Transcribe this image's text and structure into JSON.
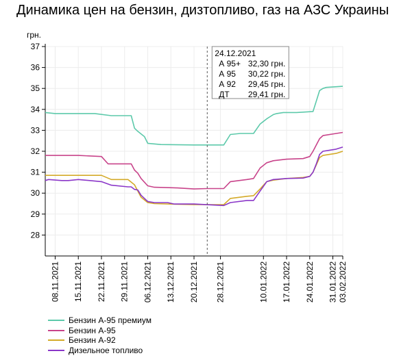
{
  "header": {
    "title": "Динамика цен на бензин, дизтопливо, газ на АЗС Украины"
  },
  "chart_data": {
    "type": "line",
    "ylabel": "грн.",
    "ylim": [
      27,
      37
    ],
    "yticks": [
      28,
      29,
      30,
      31,
      32,
      33,
      34,
      35,
      36,
      37
    ],
    "xlim": [
      "2021-11-05",
      "2022-02-03"
    ],
    "xticks": [
      "08.11.2021",
      "15.11.2021",
      "22.11.2021",
      "29.11.2021",
      "06.12.2021",
      "13.12.2021",
      "20.12.2021",
      "28.12.2021",
      "10.01.2022",
      "17.01.2022",
      "24.01.2022",
      "31.01.2022",
      "03.02.2022"
    ],
    "grid": true,
    "legend_position": "bottom",
    "series": [
      {
        "name": "Бензин А-95 премиум",
        "color": "#5cc9aa",
        "x": [
          "2021-11-05",
          "2021-11-08",
          "2021-11-20",
          "2021-11-25",
          "2021-12-01",
          "2021-12-02",
          "2021-12-03",
          "2021-12-05",
          "2021-12-06",
          "2021-12-10",
          "2021-12-20",
          "2021-12-29",
          "2021-12-31",
          "2022-01-03",
          "2022-01-07",
          "2022-01-09",
          "2022-01-11",
          "2022-01-12",
          "2022-01-13",
          "2022-01-14",
          "2022-01-16",
          "2022-01-20",
          "2022-01-25",
          "2022-01-26",
          "2022-01-27",
          "2022-01-28",
          "2022-01-29",
          "2022-02-03"
        ],
        "values": [
          33.85,
          33.8,
          33.8,
          33.7,
          33.7,
          33.1,
          32.95,
          32.7,
          32.38,
          32.32,
          32.3,
          32.3,
          32.8,
          32.85,
          32.85,
          33.3,
          33.55,
          33.65,
          33.75,
          33.8,
          33.85,
          33.85,
          33.9,
          34.4,
          34.9,
          35.0,
          35.05,
          35.1
        ]
      },
      {
        "name": "Бензин А-95",
        "color": "#c8438a",
        "x": [
          "2021-11-05",
          "2021-11-15",
          "2021-11-22",
          "2021-11-24",
          "2021-12-01",
          "2021-12-02",
          "2021-12-03",
          "2021-12-04",
          "2021-12-06",
          "2021-12-08",
          "2021-12-15",
          "2021-12-20",
          "2021-12-24",
          "2021-12-29",
          "2021-12-31",
          "2022-01-05",
          "2022-01-07",
          "2022-01-09",
          "2022-01-11",
          "2022-01-13",
          "2022-01-17",
          "2022-01-22",
          "2022-01-24",
          "2022-01-25",
          "2022-01-26",
          "2022-01-27",
          "2022-01-28",
          "2022-02-01",
          "2022-02-03"
        ],
        "values": [
          31.8,
          31.8,
          31.75,
          31.4,
          31.4,
          31.1,
          30.95,
          30.7,
          30.35,
          30.28,
          30.25,
          30.2,
          30.22,
          30.22,
          30.55,
          30.65,
          30.7,
          31.2,
          31.45,
          31.55,
          31.62,
          31.65,
          31.75,
          32.0,
          32.3,
          32.6,
          32.75,
          32.85,
          32.9
        ]
      },
      {
        "name": "Бензин А-92",
        "color": "#d4aa28",
        "x": [
          "2021-11-05",
          "2021-11-22",
          "2021-11-25",
          "2021-11-30",
          "2021-12-02",
          "2021-12-03",
          "2021-12-04",
          "2021-12-06",
          "2021-12-08",
          "2021-12-15",
          "2021-12-20",
          "2021-12-29",
          "2021-12-31",
          "2022-01-05",
          "2022-01-07",
          "2022-01-09",
          "2022-01-11",
          "2022-01-13",
          "2022-01-17",
          "2022-01-22",
          "2022-01-24",
          "2022-01-25",
          "2022-01-26",
          "2022-01-27",
          "2022-01-28",
          "2022-02-01",
          "2022-02-03"
        ],
        "values": [
          30.85,
          30.85,
          30.65,
          30.65,
          30.4,
          30.1,
          29.8,
          29.55,
          29.5,
          29.47,
          29.45,
          29.45,
          29.75,
          29.85,
          29.88,
          30.2,
          30.55,
          30.62,
          30.7,
          30.75,
          30.8,
          31.0,
          31.35,
          31.7,
          31.8,
          31.9,
          32.0
        ]
      },
      {
        "name": "Дизельное топливо",
        "color": "#8a36c8",
        "x": [
          "2021-11-05",
          "2021-11-06",
          "2021-11-10",
          "2021-11-12",
          "2021-11-15",
          "2021-11-22",
          "2021-11-25",
          "2021-11-30",
          "2021-12-01",
          "2021-12-02",
          "2021-12-03",
          "2021-12-04",
          "2021-12-06",
          "2021-12-08",
          "2021-12-12",
          "2021-12-14",
          "2021-12-20",
          "2021-12-29",
          "2021-12-31",
          "2022-01-05",
          "2022-01-07",
          "2022-01-09",
          "2022-01-11",
          "2022-01-13",
          "2022-01-17",
          "2022-01-22",
          "2022-01-24",
          "2022-01-25",
          "2022-01-26",
          "2022-01-27",
          "2022-01-28",
          "2022-02-01",
          "2022-02-03"
        ],
        "values": [
          30.6,
          30.65,
          30.6,
          30.6,
          30.65,
          30.55,
          30.38,
          30.3,
          30.3,
          30.18,
          30.15,
          29.9,
          29.6,
          29.55,
          29.55,
          29.48,
          29.48,
          29.41,
          29.55,
          29.65,
          29.65,
          30.1,
          30.55,
          30.65,
          30.7,
          30.72,
          30.8,
          31.0,
          31.4,
          31.85,
          32.0,
          32.1,
          32.2
        ]
      }
    ],
    "annotation": {
      "x": "2021-12-24",
      "date": "24.12.2021",
      "rows": [
        {
          "name": "А 95+",
          "value": "32,30 грн."
        },
        {
          "name": "А 95",
          "value": "30,22 грн."
        },
        {
          "name": "А 92",
          "value": "29,45 грн."
        },
        {
          "name": "ДТ",
          "value": "29,41 грн."
        }
      ]
    }
  }
}
